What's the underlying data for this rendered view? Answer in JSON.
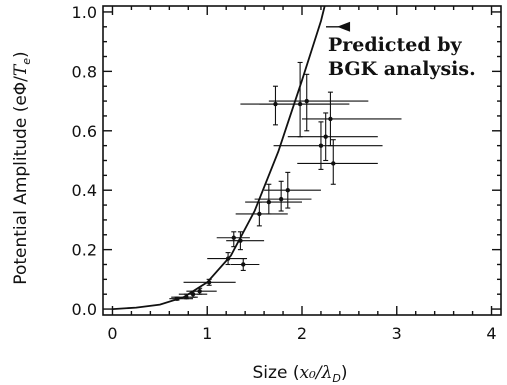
{
  "chart_data": {
    "type": "scatter",
    "title": "",
    "xlabel_main": "Size (",
    "xlabel_math": "x₀/λ",
    "xlabel_sub": "D",
    "xlabel_close": ")",
    "ylabel_main": "Potential Amplitude (eΦ/",
    "ylabel_math": "T",
    "ylabel_sub": "e",
    "ylabel_close": ")",
    "xlim": [
      -0.1,
      4.1
    ],
    "ylim": [
      -0.02,
      1.02
    ],
    "xticks": [
      0,
      1,
      2,
      3,
      4
    ],
    "xtick_labels": [
      "0",
      "1",
      "2",
      "3",
      "4"
    ],
    "yticks": [
      0.0,
      0.2,
      0.4,
      0.6,
      0.8,
      1.0
    ],
    "ytick_labels": [
      "0.0",
      "0.2",
      "0.4",
      "0.6",
      "0.8",
      "1.0"
    ],
    "grid": false,
    "annotation_line1": "Predicted by",
    "annotation_line2": "BGK analysis.",
    "annotation_arrow_tip": {
      "x": 2.37,
      "y": 0.95
    },
    "curve": {
      "name": "Predicted by BGK analysis.",
      "x": [
        0.0,
        0.25,
        0.5,
        0.75,
        1.0,
        1.25,
        1.5,
        1.75,
        2.0,
        2.1,
        2.2,
        2.24
      ],
      "y": [
        0.0,
        0.005,
        0.015,
        0.04,
        0.09,
        0.18,
        0.33,
        0.53,
        0.77,
        0.87,
        0.97,
        1.02
      ]
    },
    "points": [
      {
        "x": 0.68,
        "y": 0.035,
        "xerr": [
          0.6,
          0.85
        ],
        "yerr": [
          0.03,
          0.04
        ]
      },
      {
        "x": 0.78,
        "y": 0.04,
        "xerr": [
          0.62,
          0.9
        ],
        "yerr": [
          0.035,
          0.05
        ]
      },
      {
        "x": 0.85,
        "y": 0.05,
        "xerr": [
          0.7,
          1.0
        ],
        "yerr": [
          0.04,
          0.06
        ]
      },
      {
        "x": 0.92,
        "y": 0.06,
        "xerr": [
          0.78,
          1.1
        ],
        "yerr": [
          0.05,
          0.07
        ]
      },
      {
        "x": 1.02,
        "y": 0.09,
        "xerr": [
          0.75,
          1.3
        ],
        "yerr": [
          0.08,
          0.1
        ]
      },
      {
        "x": 1.22,
        "y": 0.17,
        "xerr": [
          1.0,
          1.42
        ],
        "yerr": [
          0.15,
          0.19
        ]
      },
      {
        "x": 1.38,
        "y": 0.15,
        "xerr": [
          1.25,
          1.55
        ],
        "yerr": [
          0.13,
          0.17
        ]
      },
      {
        "x": 1.28,
        "y": 0.24,
        "xerr": [
          1.1,
          1.45
        ],
        "yerr": [
          0.21,
          0.26
        ]
      },
      {
        "x": 1.35,
        "y": 0.23,
        "xerr": [
          1.2,
          1.6
        ],
        "yerr": [
          0.2,
          0.26
        ]
      },
      {
        "x": 1.55,
        "y": 0.32,
        "xerr": [
          1.3,
          1.85
        ],
        "yerr": [
          0.28,
          0.36
        ]
      },
      {
        "x": 1.65,
        "y": 0.36,
        "xerr": [
          1.4,
          2.0
        ],
        "yerr": [
          0.32,
          0.42
        ]
      },
      {
        "x": 1.78,
        "y": 0.37,
        "xerr": [
          1.5,
          2.1
        ],
        "yerr": [
          0.33,
          0.43
        ]
      },
      {
        "x": 1.85,
        "y": 0.4,
        "xerr": [
          1.6,
          2.2
        ],
        "yerr": [
          0.34,
          0.46
        ]
      },
      {
        "x": 1.72,
        "y": 0.69,
        "xerr": [
          1.35,
          2.3
        ],
        "yerr": [
          0.62,
          0.75
        ]
      },
      {
        "x": 2.05,
        "y": 0.7,
        "xerr": [
          1.65,
          2.7
        ],
        "yerr": [
          0.6,
          0.79
        ]
      },
      {
        "x": 1.98,
        "y": 0.69,
        "xerr": [
          1.55,
          2.5
        ],
        "yerr": [
          0.58,
          0.83
        ]
      },
      {
        "x": 2.3,
        "y": 0.64,
        "xerr": [
          2.0,
          3.05
        ],
        "yerr": [
          0.55,
          0.73
        ]
      },
      {
        "x": 2.2,
        "y": 0.55,
        "xerr": [
          1.7,
          2.85
        ],
        "yerr": [
          0.47,
          0.63
        ]
      },
      {
        "x": 2.25,
        "y": 0.58,
        "xerr": [
          1.85,
          2.8
        ],
        "yerr": [
          0.5,
          0.66
        ]
      },
      {
        "x": 2.33,
        "y": 0.49,
        "xerr": [
          1.95,
          2.8
        ],
        "yerr": [
          0.42,
          0.57
        ]
      }
    ]
  }
}
